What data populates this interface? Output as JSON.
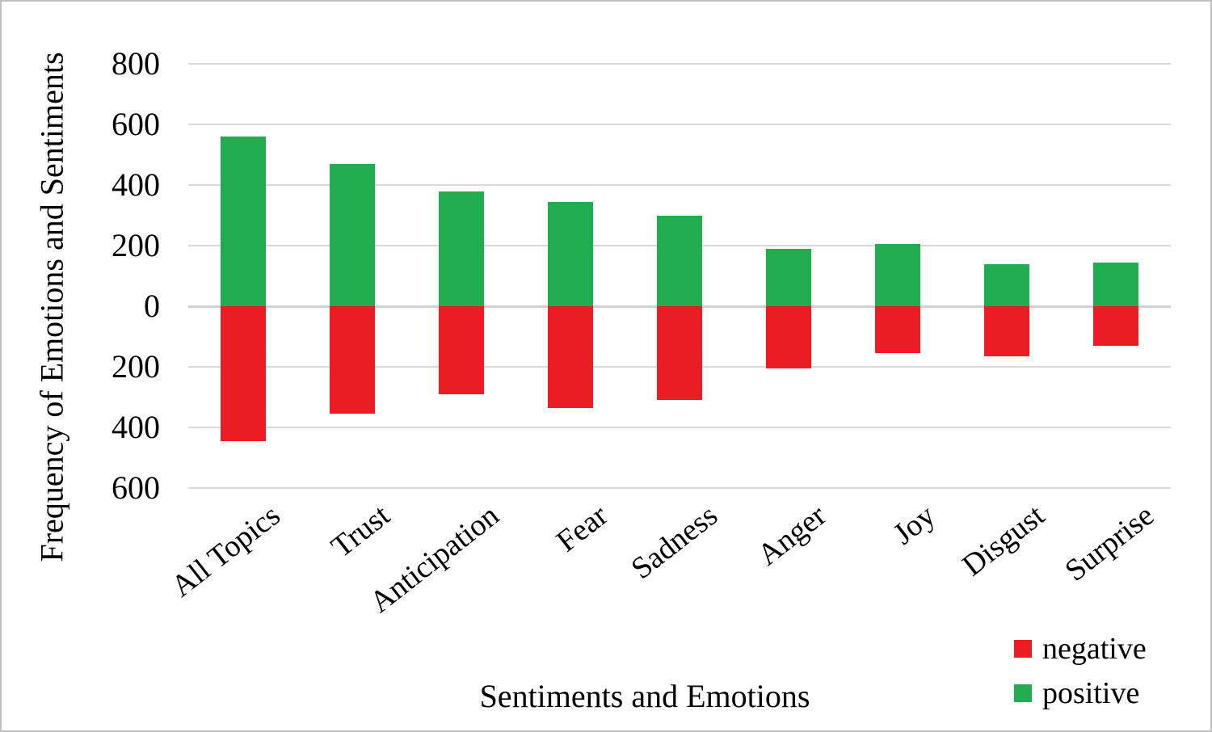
{
  "figure": {
    "background": "#ffffff",
    "border_color": "#bfbfbf"
  },
  "chart_data": {
    "type": "bar",
    "subtype": "diverging-stacked-column",
    "title": "",
    "xlabel": "Sentiments and Emotions",
    "ylabel": "Frequency of Emotions and Sentiments",
    "categories": [
      "All Topics",
      "Trust",
      "Anticipation",
      "Fear",
      "Sadness",
      "Anger",
      "Joy",
      "Disgust",
      "Surprise"
    ],
    "series": [
      {
        "name": "positive",
        "color": "#22AC50",
        "values": [
          560,
          470,
          380,
          345,
          300,
          190,
          205,
          140,
          145
        ]
      },
      {
        "name": "negative",
        "color": "#EC1C24",
        "values": [
          -445,
          -355,
          -290,
          -335,
          -310,
          -205,
          -155,
          -165,
          -130
        ]
      }
    ],
    "y_axis": {
      "tick_values": [
        800,
        600,
        400,
        200,
        0,
        -200,
        -400,
        -600
      ],
      "tick_labels": [
        "800",
        "600",
        "400",
        "200",
        "0",
        "200",
        "400",
        "600"
      ],
      "range": [
        -600,
        800
      ]
    },
    "gridlines": "horizontal",
    "gridline_color": "#d9d9d9",
    "legend": {
      "position": "bottom-right",
      "items": [
        {
          "label": "negative",
          "color": "#EC1C24"
        },
        {
          "label": "positive",
          "color": "#22AC50"
        }
      ]
    }
  }
}
